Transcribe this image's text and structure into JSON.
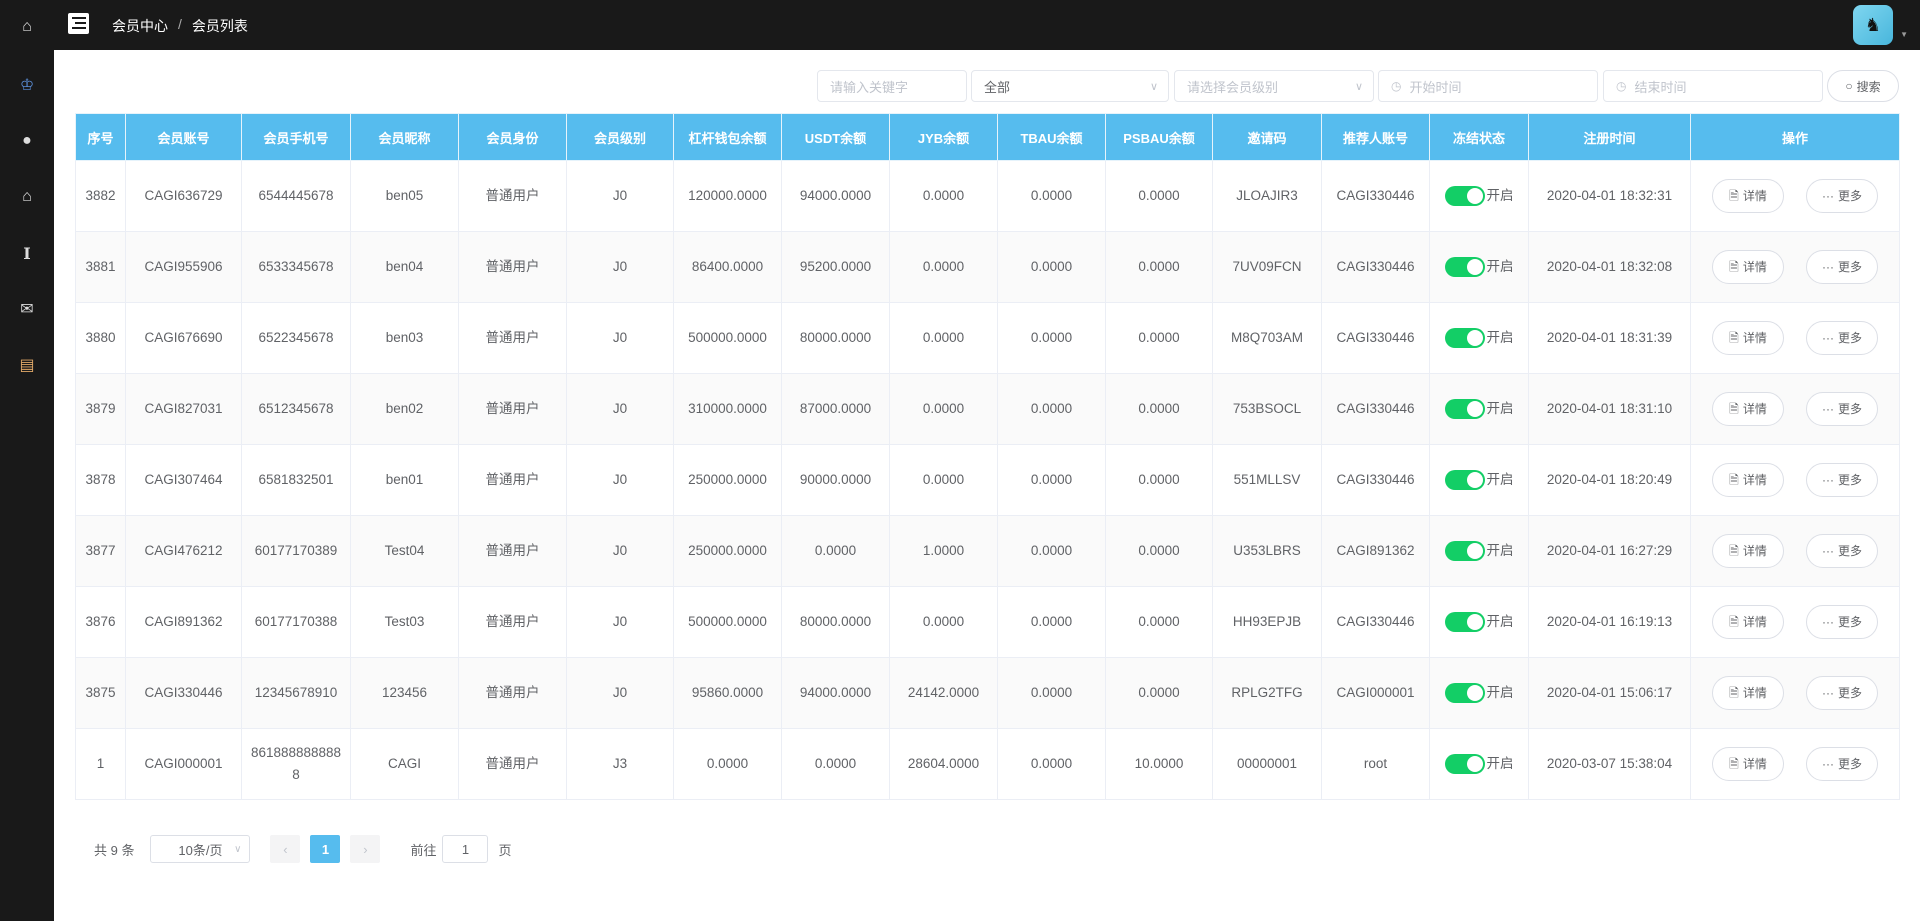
{
  "sidebar": {
    "icons": [
      "home-icon",
      "crown-icon",
      "globe-icon",
      "store-icon",
      "text-icon",
      "mail-icon",
      "document-check-icon"
    ]
  },
  "header": {
    "breadcrumb": [
      "会员中心",
      "会员列表"
    ],
    "separator": "/"
  },
  "filters": {
    "keyword_placeholder": "请输入关键字",
    "status_value": "全部",
    "level_placeholder": "请选择会员级别",
    "start_placeholder": "开始时间",
    "end_placeholder": "结束时间",
    "search_label": "搜索"
  },
  "table": {
    "headers": [
      "序号",
      "会员账号",
      "会员手机号",
      "会员昵称",
      "会员身份",
      "会员级别",
      "杠杆钱包余额",
      "USDT余额",
      "JYB余额",
      "TBAU余额",
      "PSBAU余额",
      "邀请码",
      "推荐人账号",
      "冻结状态",
      "注册时间",
      "操作"
    ],
    "switch_label": "开启",
    "detail_label": "详情",
    "more_label": "更多",
    "rows": [
      [
        "3882",
        "CAGI636729",
        "6544445678",
        "ben05",
        "普通用户",
        "J0",
        "120000.0000",
        "94000.0000",
        "0.0000",
        "0.0000",
        "0.0000",
        "JLOAJIR3",
        "CAGI330446",
        "2020-04-01 18:32:31"
      ],
      [
        "3881",
        "CAGI955906",
        "6533345678",
        "ben04",
        "普通用户",
        "J0",
        "86400.0000",
        "95200.0000",
        "0.0000",
        "0.0000",
        "0.0000",
        "7UV09FCN",
        "CAGI330446",
        "2020-04-01 18:32:08"
      ],
      [
        "3880",
        "CAGI676690",
        "6522345678",
        "ben03",
        "普通用户",
        "J0",
        "500000.0000",
        "80000.0000",
        "0.0000",
        "0.0000",
        "0.0000",
        "M8Q703AM",
        "CAGI330446",
        "2020-04-01 18:31:39"
      ],
      [
        "3879",
        "CAGI827031",
        "6512345678",
        "ben02",
        "普通用户",
        "J0",
        "310000.0000",
        "87000.0000",
        "0.0000",
        "0.0000",
        "0.0000",
        "753BSOCL",
        "CAGI330446",
        "2020-04-01 18:31:10"
      ],
      [
        "3878",
        "CAGI307464",
        "6581832501",
        "ben01",
        "普通用户",
        "J0",
        "250000.0000",
        "90000.0000",
        "0.0000",
        "0.0000",
        "0.0000",
        "551MLLSV",
        "CAGI330446",
        "2020-04-01 18:20:49"
      ],
      [
        "3877",
        "CAGI476212",
        "60177170389",
        "Test04",
        "普通用户",
        "J0",
        "250000.0000",
        "0.0000",
        "1.0000",
        "0.0000",
        "0.0000",
        "U353LBRS",
        "CAGI891362",
        "2020-04-01 16:27:29"
      ],
      [
        "3876",
        "CAGI891362",
        "60177170388",
        "Test03",
        "普通用户",
        "J0",
        "500000.0000",
        "80000.0000",
        "0.0000",
        "0.0000",
        "0.0000",
        "HH93EPJB",
        "CAGI330446",
        "2020-04-01 16:19:13"
      ],
      [
        "3875",
        "CAGI330446",
        "12345678910",
        "123456",
        "普通用户",
        "J0",
        "95860.0000",
        "94000.0000",
        "24142.0000",
        "0.0000",
        "0.0000",
        "RPLG2TFG",
        "CAGI000001",
        "2020-04-01 15:06:17"
      ],
      [
        "1",
        "CAGI000001",
        "8618888888888",
        "CAGI",
        "普通用户",
        "J3",
        "0.0000",
        "0.0000",
        "28604.0000",
        "0.0000",
        "10.0000",
        "00000001",
        "root",
        "2020-03-07 15:38:04"
      ]
    ]
  },
  "pagination": {
    "total": "共 9 条",
    "page_size": "10条/页",
    "current": "1",
    "goto_label": "前往",
    "goto_value": "1",
    "page_suffix": "页"
  },
  "colors": {
    "header": "#56bcee",
    "switch_on": "#13ce66",
    "topbar": "#191919"
  }
}
